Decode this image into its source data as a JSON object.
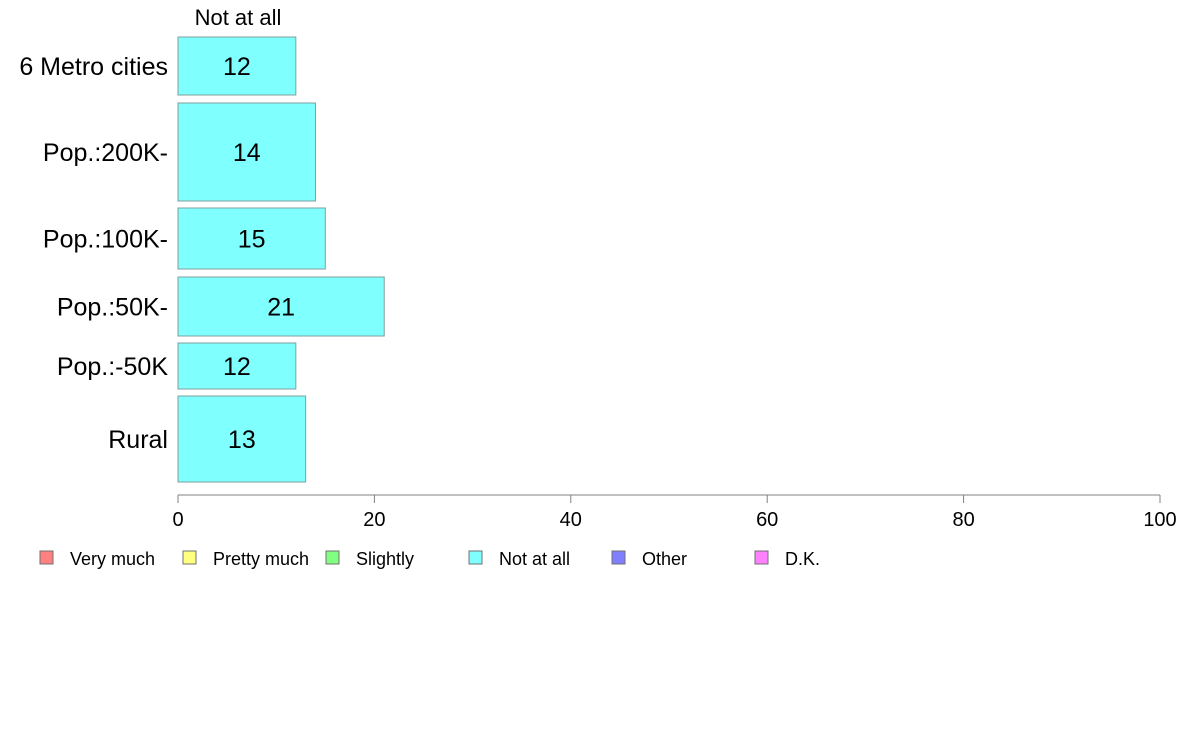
{
  "chart_data": {
    "type": "bar",
    "orientation": "horizontal",
    "series_header": "Not at all",
    "categories": [
      "6 Metro cities",
      "Pop.:200K-",
      "Pop.:100K-",
      "Pop.:50K-",
      "Pop.:-50K",
      "Rural"
    ],
    "series": [
      {
        "name": "Not at all",
        "values": [
          12,
          14,
          15,
          21,
          12,
          13
        ],
        "color": "#80ffff"
      }
    ],
    "xlim": [
      0,
      100
    ],
    "x_ticks": [
      0,
      20,
      40,
      60,
      80,
      100
    ],
    "grid": false,
    "legend": {
      "placement": "bottom",
      "entries": [
        {
          "label": "Very much",
          "color": "#ff8080"
        },
        {
          "label": "Pretty much",
          "color": "#ffff80"
        },
        {
          "label": "Slightly",
          "color": "#80ff80"
        },
        {
          "label": "Not at all",
          "color": "#80ffff"
        },
        {
          "label": "Other",
          "color": "#8080ff"
        },
        {
          "label": "D.K.",
          "color": "#ff80ff"
        }
      ]
    }
  }
}
